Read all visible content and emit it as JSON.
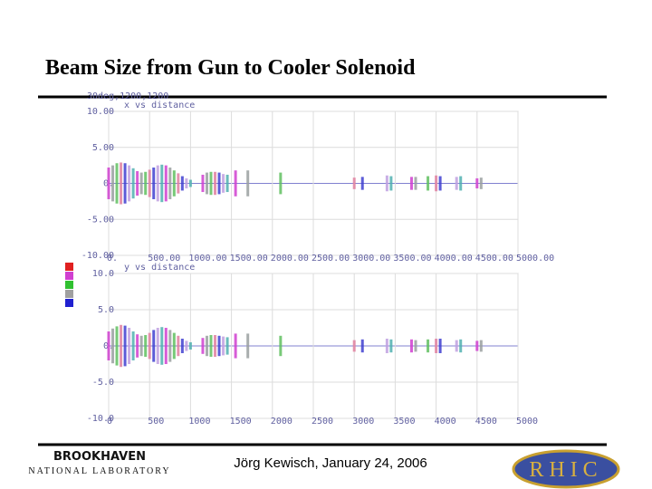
{
  "header": {
    "title": "Beam Size from Gun to Cooler Solenoid"
  },
  "footer": {
    "author": "Jörg Kewisch, January 24, 2006",
    "logo_left": "BROOKHAVEN",
    "logo_left_sub": "NATIONAL LABORATORY",
    "logo_right": "RHIC"
  },
  "chart_data": [
    {
      "type": "envelope",
      "subtitle": "30deg,1200,1200",
      "title": "x vs distance",
      "x": [
        0,
        50,
        100,
        150,
        200,
        250,
        300,
        350,
        400,
        450,
        500,
        550,
        600,
        650,
        700,
        750,
        800,
        850,
        900,
        950,
        1000,
        1150,
        1200,
        1250,
        1300,
        1350,
        1400,
        1450,
        1550,
        1700,
        2100,
        3000,
        3100,
        3400,
        3450,
        3700,
        3750,
        3900,
        4000,
        4050,
        4250,
        4300,
        4500,
        4550
      ],
      "values": [
        2.2,
        2.5,
        2.8,
        2.9,
        2.8,
        2.5,
        2.1,
        1.7,
        1.5,
        1.6,
        1.9,
        2.2,
        2.5,
        2.6,
        2.5,
        2.2,
        1.8,
        1.4,
        1.0,
        0.7,
        0.5,
        1.2,
        1.5,
        1.6,
        1.6,
        1.5,
        1.3,
        1.2,
        1.8,
        1.8,
        1.5,
        0.8,
        0.9,
        1.1,
        1.0,
        0.9,
        0.9,
        1.0,
        1.1,
        1.0,
        0.9,
        1.0,
        0.7,
        0.8
      ],
      "colors": [
        "#d040d0",
        "#9aa0a0",
        "#60c060",
        "#e080a0",
        "#4040d0",
        "#c0a0e0",
        "#50b0b0"
      ],
      "xlim": [
        0,
        5000
      ],
      "ylim": [
        -10,
        10
      ],
      "xticks": [
        {
          "value": 0,
          "label": "0."
        },
        {
          "value": 500,
          "label": "500.00"
        },
        {
          "value": 1000,
          "label": "1000.00"
        },
        {
          "value": 1500,
          "label": "1500.00"
        },
        {
          "value": 2000,
          "label": "2000.00"
        },
        {
          "value": 2500,
          "label": "2500.00"
        },
        {
          "value": 3000,
          "label": "3000.00"
        },
        {
          "value": 3500,
          "label": "3500.00"
        },
        {
          "value": 4000,
          "label": "4000.00"
        },
        {
          "value": 4500,
          "label": "4500.00"
        },
        {
          "value": 5000,
          "label": "5000.00"
        }
      ],
      "yticks": [
        {
          "value": 10,
          "label": "10.00"
        },
        {
          "value": 5,
          "label": "5.00"
        },
        {
          "value": 0,
          "label": "0."
        },
        {
          "value": -5,
          "label": "-5.00"
        },
        {
          "value": -10,
          "label": "-10.00"
        }
      ],
      "grid": true
    },
    {
      "type": "envelope",
      "title": "y vs distance",
      "x": [
        0,
        50,
        100,
        150,
        200,
        250,
        300,
        350,
        400,
        450,
        500,
        550,
        600,
        650,
        700,
        750,
        800,
        850,
        900,
        950,
        1000,
        1150,
        1200,
        1250,
        1300,
        1350,
        1400,
        1450,
        1550,
        1700,
        2100,
        3000,
        3100,
        3400,
        3450,
        3700,
        3750,
        3900,
        4000,
        4050,
        4250,
        4300,
        4500,
        4550
      ],
      "values": [
        2.0,
        2.4,
        2.7,
        2.9,
        2.8,
        2.5,
        2.0,
        1.6,
        1.4,
        1.5,
        1.8,
        2.2,
        2.5,
        2.6,
        2.5,
        2.2,
        1.8,
        1.4,
        1.0,
        0.7,
        0.5,
        1.1,
        1.4,
        1.5,
        1.5,
        1.4,
        1.3,
        1.2,
        1.7,
        1.7,
        1.4,
        0.8,
        0.9,
        1.0,
        0.9,
        0.9,
        0.8,
        0.9,
        1.0,
        1.0,
        0.8,
        0.9,
        0.7,
        0.8
      ],
      "colors": [
        "#d040d0",
        "#9aa0a0",
        "#60c060",
        "#e080a0",
        "#4040d0",
        "#c0a0e0",
        "#50b0b0"
      ],
      "xlim": [
        0,
        5000
      ],
      "ylim": [
        -10,
        10
      ],
      "xticks": [
        0,
        500,
        1000,
        1500,
        2000,
        2500,
        3000,
        3500,
        4000,
        4500,
        5000
      ],
      "yticks": [
        {
          "value": 10,
          "label": "10.0"
        },
        {
          "value": 5,
          "label": "5.0"
        },
        {
          "value": 0,
          "label": "0."
        },
        {
          "value": -5,
          "label": "-5.0"
        },
        {
          "value": -10,
          "label": "-10.0"
        }
      ],
      "grid": true
    }
  ]
}
